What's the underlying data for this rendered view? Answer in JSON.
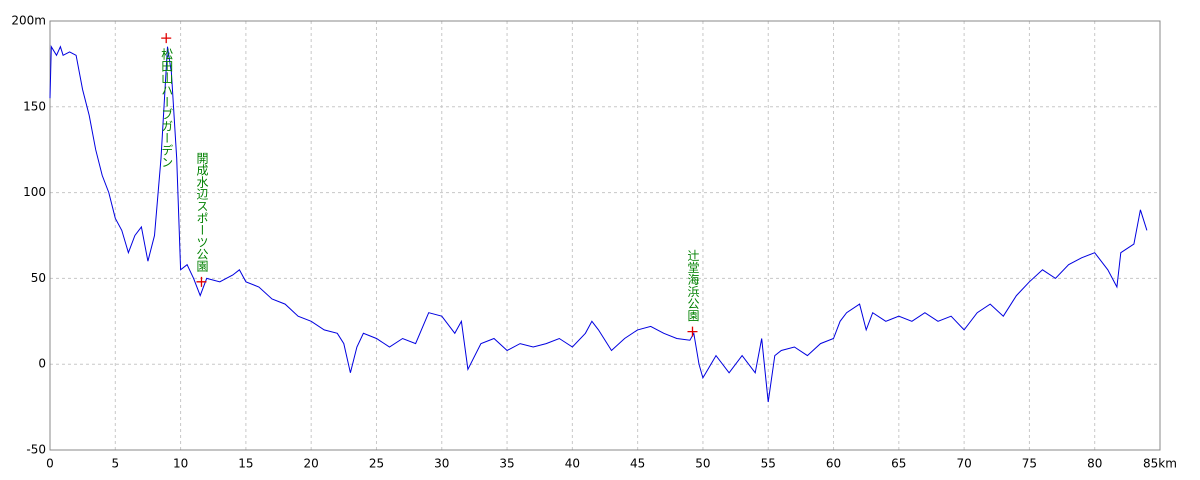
{
  "chart_data": {
    "type": "line",
    "color": "#0000e0",
    "grid": true,
    "marker_color": "#e00000",
    "annotation_color": "#008000",
    "x": [
      0,
      0.1,
      0.5,
      0.8,
      1,
      1.5,
      2,
      2.5,
      3,
      3.5,
      4,
      4.5,
      5,
      5.5,
      6,
      6.5,
      7,
      7.5,
      8,
      8.5,
      9,
      9.3,
      9.7,
      10,
      10.5,
      11,
      11.5,
      12,
      13,
      14,
      14.5,
      15,
      16,
      17,
      18,
      19,
      20,
      21,
      22,
      22.5,
      23,
      23.5,
      24,
      25,
      26,
      27,
      28,
      29,
      30,
      31,
      31.5,
      32,
      33,
      34,
      35,
      36,
      37,
      38,
      39,
      40,
      41,
      41.5,
      42,
      43,
      44,
      45,
      46,
      47,
      48,
      49,
      49.3,
      49.7,
      50,
      51,
      52,
      53,
      54,
      54.5,
      55,
      55.5,
      56,
      57,
      58,
      59,
      60,
      60.5,
      61,
      62,
      62.5,
      63,
      64,
      65,
      66,
      67,
      68,
      69,
      70,
      71,
      72,
      73,
      74,
      75,
      76,
      77,
      78,
      79,
      80,
      81,
      81.7,
      82,
      83,
      83.5,
      84
    ],
    "values": [
      155,
      185,
      180,
      185,
      180,
      182,
      180,
      160,
      145,
      125,
      110,
      100,
      85,
      78,
      65,
      75,
      80,
      60,
      75,
      120,
      185,
      170,
      120,
      55,
      58,
      50,
      40,
      50,
      48,
      52,
      55,
      48,
      45,
      38,
      35,
      28,
      25,
      20,
      18,
      12,
      -5,
      10,
      18,
      15,
      10,
      15,
      12,
      30,
      28,
      18,
      25,
      -3,
      12,
      15,
      8,
      12,
      10,
      12,
      15,
      10,
      18,
      25,
      20,
      8,
      15,
      20,
      22,
      18,
      15,
      14,
      18,
      0,
      -8,
      5,
      -5,
      5,
      -5,
      15,
      -22,
      5,
      8,
      10,
      5,
      12,
      15,
      25,
      30,
      35,
      20,
      30,
      25,
      28,
      25,
      30,
      25,
      28,
      20,
      30,
      35,
      28,
      40,
      48,
      55,
      50,
      58,
      62,
      65,
      55,
      45,
      65,
      70,
      90,
      78
    ],
    "xlim": [
      0,
      85
    ],
    "xticks": [
      0,
      5,
      10,
      15,
      20,
      25,
      30,
      35,
      40,
      45,
      50,
      55,
      60,
      65,
      70,
      75,
      80,
      {
        "value": 85,
        "label": "85km"
      }
    ],
    "ylim": [
      -50,
      200
    ],
    "yticks": [
      -50,
      0,
      50,
      100,
      150,
      {
        "value": 200,
        "label": "200m"
      }
    ],
    "annotations": [
      {
        "text": "松田山ハーブガーデン",
        "x": 8.9,
        "y": 190
      },
      {
        "text": "開成水辺スポーツ公園",
        "x": 11.6,
        "y": 48
      },
      {
        "text": "辻堂海浜公園",
        "x": 49.2,
        "y": 19
      }
    ]
  }
}
